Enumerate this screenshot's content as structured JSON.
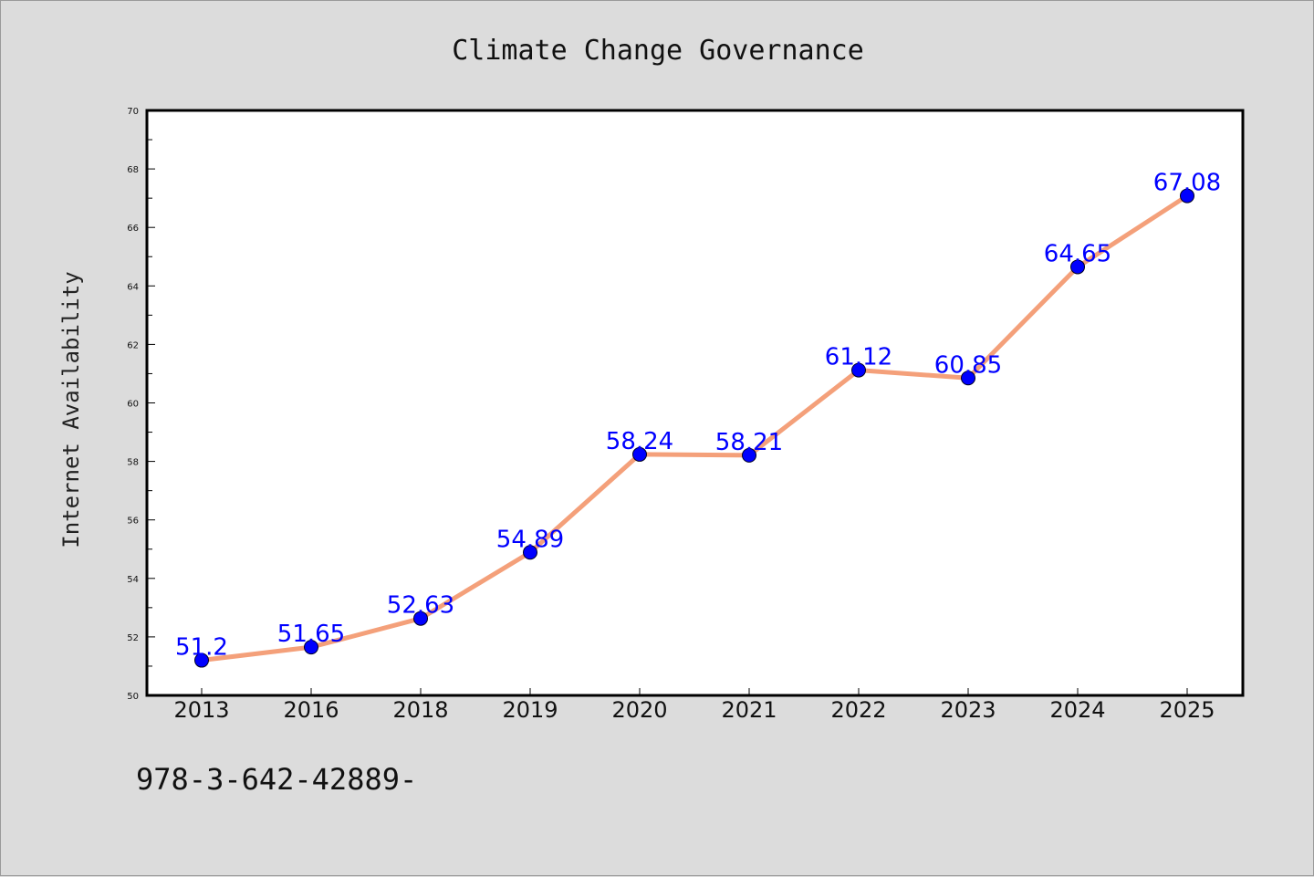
{
  "chart_data": {
    "type": "line",
    "title": "Climate Change Governance",
    "xlabel": "",
    "ylabel": "Internet Availability",
    "categories": [
      "2013",
      "2016",
      "2018",
      "2019",
      "2020",
      "2021",
      "2022",
      "2023",
      "2024",
      "2025"
    ],
    "series": [
      {
        "values": [
          51.2,
          51.65,
          52.63,
          54.89,
          58.24,
          58.21,
          61.12,
          60.85,
          64.65,
          67.08
        ],
        "labels": [
          "51.2",
          "51.65",
          "52.63",
          "54.89",
          "58.24",
          "58.21",
          "61.12",
          "60.85",
          "64.65",
          "67.08"
        ],
        "line_color": "#f4a07a",
        "marker_color": "#0000ff"
      }
    ],
    "ylim": [
      50,
      70
    ],
    "yticks": [
      "50",
      "52",
      "54",
      "56",
      "58",
      "60",
      "62",
      "64",
      "66",
      "68",
      "70"
    ],
    "grid": false,
    "legend": "none"
  },
  "footer": {
    "note": "978-3-642-42889-"
  }
}
